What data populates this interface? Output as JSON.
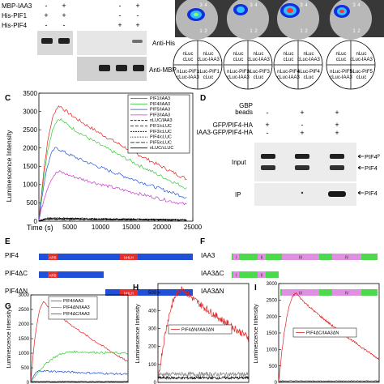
{
  "panelA": {
    "rows": [
      "MBP-IAA3",
      "His-PIF1",
      "His-PIF4"
    ],
    "signs": [
      [
        "-",
        "+",
        "-",
        "+"
      ],
      [
        "+",
        "+",
        "-",
        "-"
      ],
      [
        "-",
        "-",
        "+",
        "+"
      ]
    ],
    "blot_labels": [
      "Anti-His",
      "Anti-MBP"
    ]
  },
  "panelB": {
    "plates": [
      {
        "quadrants": [
          "nLuc-PIF1",
          "cLuc-IAA3",
          "nLuc",
          "cLuc"
        ],
        "nums": [
          "3",
          "4",
          "1",
          "2"
        ]
      },
      {
        "quadrants": [
          "nLuc-PIF3",
          "cLuc-IAA3",
          "nLuc",
          "cLuc"
        ],
        "nums": [
          "3",
          "4",
          "1",
          "2"
        ]
      },
      {
        "quadrants": [
          "nLuc-PIF4",
          "cLuc-IAA3",
          "nLuc",
          "cLuc"
        ],
        "nums": [
          "3",
          "4",
          "1",
          "2"
        ]
      },
      {
        "quadrants": [
          "nLuc-PIF5",
          "cLuc-IAA3",
          "nLuc",
          "cLuc"
        ],
        "nums": [
          "3",
          "4",
          "1",
          "2"
        ]
      }
    ]
  },
  "panelD": {
    "rows": [
      "GBP beads",
      "GFP/PIF4-HA",
      "IAA3-GFP/PIF4-HA"
    ],
    "signs": [
      [
        "-",
        "+",
        "+"
      ],
      [
        "+",
        "-",
        "+"
      ],
      [
        "-",
        "+",
        "+"
      ]
    ],
    "blot_labels": [
      "Input",
      "IP"
    ],
    "band_labels": [
      "PIF4ᴾ",
      "PIF4",
      "PIF4"
    ]
  },
  "panelE": {
    "constructs": [
      {
        "name": "PIF4",
        "domains": [
          "APB",
          "bHLH"
        ]
      },
      {
        "name": "PIF4ΔC",
        "domains": [
          "APB"
        ]
      },
      {
        "name": "PIF4ΔN",
        "domains": [
          "bHLH"
        ]
      }
    ]
  },
  "panelF": {
    "constructs": [
      {
        "name": "IAA3",
        "domains": [
          "I",
          "II",
          "III",
          "IV"
        ]
      },
      {
        "name": "IAA3ΔC",
        "domains": [
          "I",
          "II"
        ]
      },
      {
        "name": "IAA3ΔN",
        "domains": [
          "III",
          "IV"
        ]
      }
    ]
  },
  "colors": {
    "red": "#e02020",
    "green": "#33cc33",
    "blue": "#2050d8",
    "magenta": "#cc33cc",
    "apb": "#e53030",
    "domainGreen": "#4cd94c",
    "domainPink": "#e090e0"
  },
  "chart_data": [
    {
      "panel": "C",
      "type": "line",
      "xlabel": "Time (s)",
      "ylabel": "Luminescence Intensity",
      "xlim": [
        0,
        25000
      ],
      "ylim": [
        0,
        3500
      ],
      "xticks": [
        5000,
        10000,
        15000,
        20000,
        25000
      ],
      "yticks": [
        0,
        500,
        1000,
        1500,
        2000,
        2500,
        3000,
        3500
      ],
      "series": [
        {
          "name": "PIF1/IAA3",
          "color": "#e02020",
          "peak_x": 3500,
          "peak_y": 3150,
          "end_y": 1150
        },
        {
          "name": "PIF4/IAA3",
          "color": "#33cc33",
          "peak_x": 3500,
          "peak_y": 2800,
          "end_y": 900
        },
        {
          "name": "PIF5/IAA3",
          "color": "#2050d8",
          "peak_x": 3000,
          "peak_y": 2000,
          "end_y": 650
        },
        {
          "name": "PIF3/IAA3",
          "color": "#cc33cc",
          "peak_x": 3500,
          "peak_y": 1350,
          "end_y": 450
        },
        {
          "name": "nLUC/IAA3",
          "color": "#000000",
          "peak_x": 2000,
          "peak_y": 60,
          "end_y": 30
        },
        {
          "name": "PIF1/cLUC",
          "color": "#000000",
          "peak_x": 2000,
          "peak_y": 70,
          "end_y": 35
        },
        {
          "name": "PIF3/cLUC",
          "color": "#000000",
          "peak_x": 2000,
          "peak_y": 80,
          "end_y": 40
        },
        {
          "name": "PIF4/cLUC",
          "color": "#000000",
          "peak_x": 2000,
          "peak_y": 90,
          "end_y": 45
        },
        {
          "name": "PIF5/cLUC",
          "color": "#000000",
          "peak_x": 2000,
          "peak_y": 75,
          "end_y": 35
        },
        {
          "name": "nLUC/cLUC",
          "color": "#000000",
          "peak_x": 2000,
          "peak_y": 55,
          "end_y": 30
        }
      ]
    },
    {
      "panel": "G",
      "type": "line",
      "ylabel": "Luminescence Intensity",
      "ylim": [
        0,
        3000
      ],
      "yticks": [
        0,
        500,
        1000,
        1500,
        2000,
        2500,
        3000
      ],
      "series": [
        {
          "name": "PIF4/IAA3",
          "color": "#e02020",
          "peak": 2750,
          "end": 700
        },
        {
          "name": "PIF4ΔN/IAA3",
          "color": "#33cc33",
          "peak": 1050,
          "end": 1000
        },
        {
          "name": "PIF4ΔC/IAA3",
          "color": "#2050d8",
          "peak": 400,
          "end": 280
        }
      ]
    },
    {
      "panel": "H",
      "type": "line",
      "ylabel": "Luminescence Intensity",
      "ylim": [
        0,
        550
      ],
      "yticks": [
        0,
        100,
        200,
        300,
        400,
        500
      ],
      "series": [
        {
          "name": "PIF4ΔN/IAA3ΔN",
          "color": "#e02020",
          "peak": 520,
          "end": 250
        }
      ]
    },
    {
      "panel": "I",
      "type": "line",
      "ylabel": "Luminescence Intensity",
      "ylim": [
        0,
        3000
      ],
      "yticks": [
        0,
        500,
        1000,
        1500,
        2000,
        2500,
        3000
      ],
      "series": [
        {
          "name": "PIF4ΔC/IAA3ΔN",
          "color": "#e02020",
          "peak": 2700,
          "end": 700
        }
      ]
    }
  ]
}
